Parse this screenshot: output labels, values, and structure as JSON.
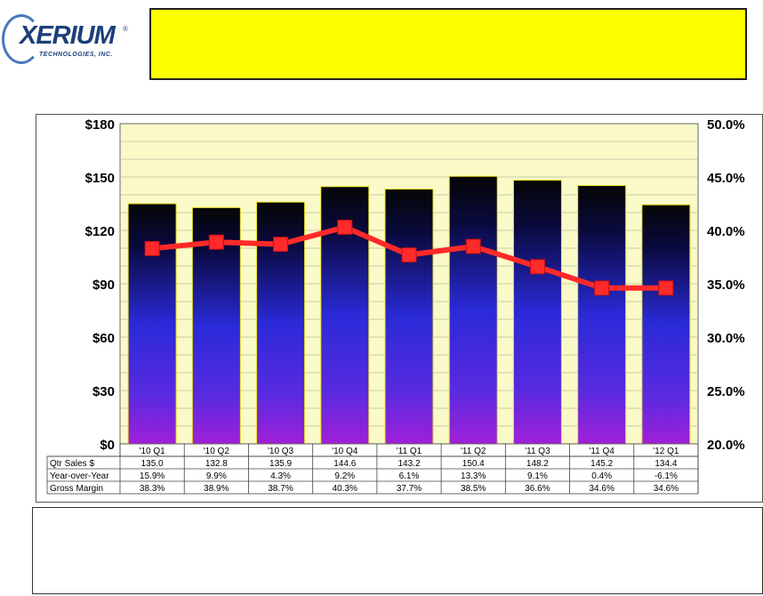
{
  "logo": {
    "text": "XERIUM",
    "registered": "®",
    "subtitle": "TECHNOLOGIES, INC."
  },
  "colors": {
    "banner": "#ffff00",
    "plot_background": "#fafac8",
    "line": "#ff2a2a",
    "bar_top": "#050505",
    "bar_mid": "#2a2ad8",
    "bar_bottom": "#a020d8"
  },
  "chart_data": {
    "type": "bar",
    "categories": [
      "'10 Q1",
      "'10 Q2",
      "'10 Q3",
      "'10 Q4",
      "'11 Q1",
      "'11 Q2",
      "'11 Q3",
      "'11 Q4",
      "'12 Q1"
    ],
    "y_left": {
      "ylim": [
        0,
        180
      ],
      "ticks": [
        0,
        30,
        60,
        90,
        120,
        150,
        180
      ],
      "tick_labels": [
        "$0",
        "$30",
        "$60",
        "$90",
        "$120",
        "$150",
        "$180"
      ]
    },
    "y_right": {
      "ylim": [
        20,
        50
      ],
      "ticks": [
        20,
        25,
        30,
        35,
        40,
        45,
        50
      ],
      "tick_labels": [
        "20.0%",
        "25.0%",
        "30.0%",
        "35.0%",
        "40.0%",
        "45.0%",
        "50.0%"
      ]
    },
    "grid": true,
    "series": [
      {
        "type": "bar",
        "axis": "left",
        "values": [
          135.0,
          132.8,
          135.9,
          144.6,
          143.2,
          150.4,
          148.2,
          145.2,
          134.4
        ]
      },
      {
        "type": "line",
        "axis": "right",
        "values": [
          38.3,
          38.9,
          38.7,
          40.3,
          37.7,
          38.5,
          36.6,
          34.6,
          34.6
        ]
      }
    ],
    "table": {
      "rows": [
        {
          "label": "Qtr Sales $",
          "cells": [
            "135.0",
            "132.8",
            "135.9",
            "144.6",
            "143.2",
            "150.4",
            "148.2",
            "145.2",
            "134.4"
          ]
        },
        {
          "label": "Year-over-Year",
          "cells": [
            "15.9%",
            "9.9%",
            "4.3%",
            "9.2%",
            "6.1%",
            "13.3%",
            "9.1%",
            "0.4%",
            "-6.1%"
          ]
        },
        {
          "label": "Gross Margin",
          "cells": [
            "38.3%",
            "38.9%",
            "38.7%",
            "40.3%",
            "37.7%",
            "38.5%",
            "36.6%",
            "34.6%",
            "34.6%"
          ]
        }
      ]
    }
  }
}
